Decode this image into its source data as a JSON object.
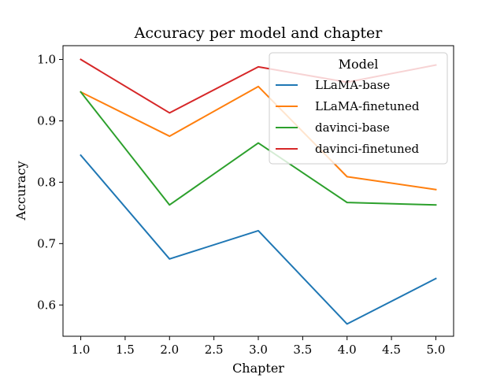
{
  "chart_data": {
    "type": "line",
    "title": "Accuracy per model and chapter",
    "xlabel": "Chapter",
    "ylabel": "Accuracy",
    "x": [
      1.0,
      2.0,
      3.0,
      4.0,
      5.0
    ],
    "xlim": [
      0.8,
      5.2
    ],
    "ylim": [
      0.549,
      1.0225
    ],
    "xticks": [
      "1.0",
      "1.5",
      "2.0",
      "2.5",
      "3.0",
      "3.5",
      "4.0",
      "4.5",
      "5.0"
    ],
    "yticks": [
      "0.6",
      "0.7",
      "0.8",
      "0.9",
      "1.0"
    ],
    "grid": false,
    "legend": {
      "title": "Model",
      "position": "top-right"
    },
    "series": [
      {
        "name": "LLaMA-base",
        "color": "#1f77b4",
        "values": [
          0.844,
          0.675,
          0.721,
          0.569,
          0.643
        ]
      },
      {
        "name": "LLaMA-finetuned",
        "color": "#ff7f0e",
        "values": [
          0.947,
          0.875,
          0.956,
          0.809,
          0.788
        ]
      },
      {
        "name": "davinci-base",
        "color": "#2ca02c",
        "values": [
          0.947,
          0.763,
          0.864,
          0.767,
          0.763
        ]
      },
      {
        "name": "davinci-finetuned",
        "color": "#d62728",
        "values": [
          1.0,
          0.913,
          0.988,
          0.963,
          0.991
        ]
      }
    ]
  }
}
